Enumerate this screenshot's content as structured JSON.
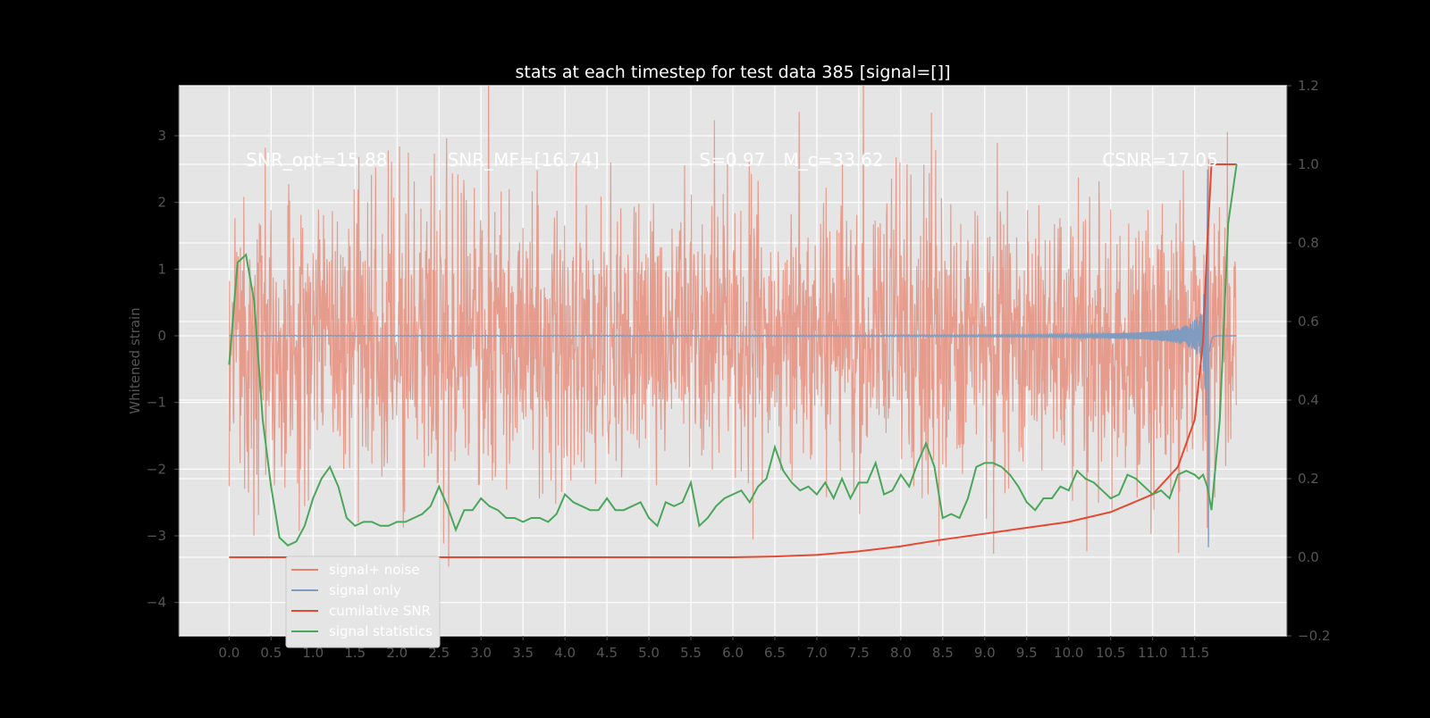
{
  "chart_data": {
    "type": "line",
    "title": "stats at each timestep for test data 385 [signal=[]]",
    "xlabel": "",
    "ylabel": "Whitened strain",
    "xlim": [
      -0.6,
      12.6
    ],
    "ylim": [
      -4.5,
      3.75
    ],
    "y2lim": [
      -0.2,
      1.2
    ],
    "grid": true,
    "background": "#e5e5e5",
    "xticks": [
      0.0,
      0.5,
      1.0,
      1.5,
      2.0,
      2.5,
      3.0,
      3.5,
      4.0,
      4.5,
      5.0,
      5.5,
      6.0,
      6.5,
      7.0,
      7.5,
      8.0,
      8.5,
      9.0,
      9.5,
      10.0,
      10.5,
      11.0,
      11.5
    ],
    "xtick_labels": [
      "0.0",
      "0.5",
      "1.0",
      "1.5",
      "2.0",
      "2.5",
      "3.0",
      "3.5",
      "4.0",
      "4.5",
      "5.0",
      "5.5",
      "6.0",
      "6.5",
      "7.0",
      "7.5",
      "8.0",
      "8.5",
      "9.0",
      "9.5",
      "10.0",
      "10.5",
      "11.0",
      "11.5"
    ],
    "yticks": [
      -4,
      -3,
      -2,
      -1,
      0,
      1,
      2,
      3
    ],
    "ytick_labels": [
      "−4",
      "−3",
      "−2",
      "−1",
      "0",
      "1",
      "2",
      "3"
    ],
    "y2ticks": [
      -0.2,
      0.0,
      0.2,
      0.4,
      0.6,
      0.8,
      1.0,
      1.2
    ],
    "y2tick_labels": [
      "−0.2",
      "0.0",
      "0.2",
      "0.4",
      "0.6",
      "0.8",
      "1.0",
      "1.2"
    ],
    "annotations": [
      {
        "text": "SNR_opt=15.88",
        "x": 0.2,
        "y": 2.65
      },
      {
        "text": "SNR_MF=[16.74]",
        "x": 2.6,
        "y": 2.65
      },
      {
        "text": "S=0.97",
        "x": 5.6,
        "y": 2.65
      },
      {
        "text": "M_c=33.62",
        "x": 6.6,
        "y": 2.65
      },
      {
        "text": "CSNR=17.05",
        "x": 10.4,
        "y": 2.65
      }
    ],
    "legend": {
      "position": "lower-left",
      "entries": [
        {
          "label": "signal+ noise",
          "color": "#e5836f"
        },
        {
          "label": "signal only",
          "color": "#7f9bc0"
        },
        {
          "label": "cumilative SNR",
          "color": "#e24a33"
        },
        {
          "label": "signal statistics",
          "color": "#4aa65a"
        }
      ]
    },
    "series": [
      {
        "name": "signal+ noise",
        "axis": "left",
        "color": "#e5836f",
        "description": "whitened noise band, roughly ±1.7 std with spikes to ±3; x from 0.0 to 12.0",
        "x_range": [
          0.0,
          12.0
        ],
        "envelope": 1.7
      },
      {
        "name": "signal only",
        "axis": "left",
        "color": "#7f9bc0",
        "description": "chirp, flat near 0 then growing oscillation to peak ~3.2 at x≈11.65",
        "x_range": [
          0.0,
          12.0
        ],
        "peak_x": 11.65,
        "peak_y": 3.2
      },
      {
        "name": "cumilative SNR",
        "axis": "right",
        "color": "#e24a33",
        "x": [
          0.0,
          6.0,
          6.5,
          7.0,
          7.5,
          8.0,
          8.5,
          9.0,
          9.5,
          10.0,
          10.5,
          11.0,
          11.3,
          11.5,
          11.6,
          11.65,
          11.7,
          12.0
        ],
        "y": [
          0.0,
          0.0,
          0.002,
          0.006,
          0.015,
          0.028,
          0.045,
          0.06,
          0.075,
          0.09,
          0.115,
          0.16,
          0.23,
          0.35,
          0.55,
          0.8,
          1.0,
          1.0
        ]
      },
      {
        "name": "signal statistics",
        "axis": "right",
        "color": "#4aa65a",
        "x": [
          0.0,
          0.1,
          0.2,
          0.3,
          0.4,
          0.5,
          0.6,
          0.7,
          0.8,
          0.9,
          1.0,
          1.1,
          1.2,
          1.3,
          1.4,
          1.5,
          1.6,
          1.7,
          1.8,
          1.9,
          2.0,
          2.1,
          2.2,
          2.3,
          2.4,
          2.5,
          2.6,
          2.7,
          2.8,
          2.9,
          3.0,
          3.1,
          3.2,
          3.3,
          3.4,
          3.5,
          3.6,
          3.7,
          3.8,
          3.9,
          4.0,
          4.1,
          4.2,
          4.3,
          4.4,
          4.5,
          4.6,
          4.7,
          4.8,
          4.9,
          5.0,
          5.1,
          5.2,
          5.3,
          5.4,
          5.5,
          5.6,
          5.7,
          5.8,
          5.9,
          6.0,
          6.1,
          6.2,
          6.3,
          6.4,
          6.5,
          6.6,
          6.7,
          6.8,
          6.9,
          7.0,
          7.1,
          7.2,
          7.3,
          7.4,
          7.5,
          7.6,
          7.7,
          7.8,
          7.9,
          8.0,
          8.1,
          8.2,
          8.3,
          8.4,
          8.5,
          8.6,
          8.7,
          8.8,
          8.9,
          9.0,
          9.1,
          9.2,
          9.3,
          9.4,
          9.5,
          9.6,
          9.7,
          9.8,
          9.9,
          10.0,
          10.1,
          10.2,
          10.3,
          10.4,
          10.5,
          10.6,
          10.7,
          10.8,
          10.9,
          11.0,
          11.1,
          11.2,
          11.3,
          11.4,
          11.5,
          11.55,
          11.6,
          11.65,
          11.7,
          11.8,
          11.9,
          12.0
        ],
        "y": [
          0.49,
          0.75,
          0.77,
          0.65,
          0.35,
          0.18,
          0.05,
          0.03,
          0.04,
          0.08,
          0.15,
          0.2,
          0.23,
          0.18,
          0.1,
          0.08,
          0.09,
          0.09,
          0.08,
          0.08,
          0.09,
          0.09,
          0.1,
          0.11,
          0.13,
          0.18,
          0.13,
          0.07,
          0.12,
          0.12,
          0.15,
          0.13,
          0.12,
          0.1,
          0.1,
          0.09,
          0.1,
          0.1,
          0.09,
          0.11,
          0.16,
          0.14,
          0.13,
          0.12,
          0.12,
          0.15,
          0.12,
          0.12,
          0.13,
          0.14,
          0.1,
          0.08,
          0.14,
          0.13,
          0.14,
          0.19,
          0.08,
          0.1,
          0.13,
          0.15,
          0.16,
          0.17,
          0.14,
          0.18,
          0.2,
          0.28,
          0.22,
          0.19,
          0.17,
          0.18,
          0.16,
          0.19,
          0.15,
          0.2,
          0.15,
          0.19,
          0.19,
          0.24,
          0.16,
          0.17,
          0.21,
          0.18,
          0.24,
          0.29,
          0.23,
          0.1,
          0.11,
          0.1,
          0.15,
          0.23,
          0.24,
          0.24,
          0.23,
          0.21,
          0.18,
          0.14,
          0.12,
          0.15,
          0.15,
          0.18,
          0.17,
          0.22,
          0.2,
          0.19,
          0.17,
          0.15,
          0.16,
          0.21,
          0.2,
          0.18,
          0.16,
          0.17,
          0.15,
          0.21,
          0.22,
          0.21,
          0.2,
          0.21,
          0.18,
          0.12,
          0.35,
          0.85,
          1.0
        ]
      }
    ]
  }
}
